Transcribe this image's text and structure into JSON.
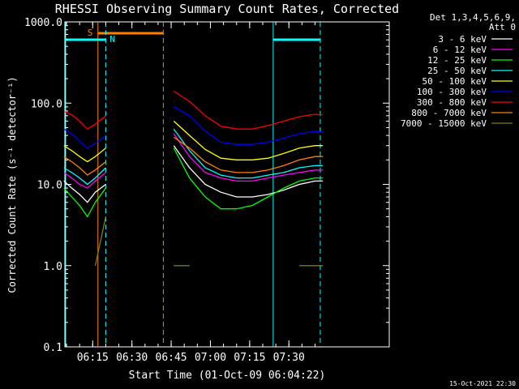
{
  "chart_data": {
    "type": "line",
    "title": "RHESSI Observing Summary Count Rates, Corrected",
    "xlabel": "Start Time (01-Oct-09 06:04:22)",
    "ylabel": "Corrected Count Rate (s⁻¹ detector⁻¹)",
    "yscale": "log",
    "ylim": [
      0.1,
      1000.0
    ],
    "xlim_minutes_after_start": [
      0,
      124
    ],
    "grid": false,
    "legend_placement": "top-right outside plot",
    "x_tick_labels": [
      "06:15",
      "06:30",
      "06:45",
      "07:00",
      "07:15",
      "07:30"
    ],
    "y_tick_labels": [
      "0.1",
      "1.0",
      "10.0",
      "100.0",
      "1000.0"
    ],
    "legend_header": [
      "Det 1,3,4,5,6,9,",
      "Att 0"
    ],
    "x_time_axis": [
      "06:04",
      "06:07",
      "06:10",
      "06:13",
      "06:16",
      "06:20",
      "06:46",
      "06:52",
      "06:58",
      "07:04",
      "07:10",
      "07:16",
      "07:22",
      "07:28",
      "07:34",
      "07:40",
      "07:43"
    ],
    "series": [
      {
        "name": "3 - 6 keV",
        "color": "#ffffff",
        "values": [
          11,
          9,
          7.5,
          6,
          8,
          10,
          30,
          16,
          10,
          8,
          7,
          7,
          7.5,
          8.5,
          10,
          11,
          11
        ]
      },
      {
        "name": "6 - 12 keV",
        "color": "#ff00ff",
        "values": [
          14,
          12,
          10,
          9,
          11,
          14,
          42,
          22,
          14,
          12,
          11,
          11,
          12,
          13,
          14,
          15,
          15
        ]
      },
      {
        "name": "12 - 25 keV",
        "color": "#00ff00",
        "values": [
          9,
          7,
          5.5,
          4,
          6,
          9,
          28,
          12,
          7,
          5,
          5,
          5.5,
          7,
          9,
          11,
          12,
          12
        ]
      },
      {
        "name": "25 - 50 keV",
        "color": "#00ffff",
        "values": [
          16,
          14,
          12,
          10,
          12,
          16,
          48,
          26,
          16,
          13,
          12,
          12,
          13,
          14,
          16,
          17,
          17
        ]
      },
      {
        "name": "50 - 100 keV",
        "color": "#ffff00",
        "values": [
          30,
          26,
          22,
          19,
          22,
          28,
          60,
          40,
          27,
          21,
          20,
          20,
          21,
          24,
          28,
          30,
          30
        ]
      },
      {
        "name": "100 - 300 keV",
        "color": "#0000ff",
        "values": [
          48,
          42,
          34,
          28,
          32,
          40,
          90,
          70,
          45,
          33,
          31,
          31,
          33,
          37,
          42,
          45,
          44
        ]
      },
      {
        "name": "300 - 800 keV",
        "color": "#ff0000",
        "values": [
          80,
          72,
          60,
          48,
          55,
          70,
          140,
          105,
          70,
          52,
          48,
          48,
          53,
          60,
          68,
          73,
          72
        ]
      },
      {
        "name": "800 - 7000 keV",
        "color": "#ff8000",
        "values": [
          22,
          19,
          16,
          13,
          15,
          19,
          38,
          28,
          19,
          15,
          14,
          14,
          15,
          17,
          20,
          22,
          22
        ]
      },
      {
        "name": "7000 - 15000 keV",
        "color": "#808000",
        "values": [
          null,
          null,
          null,
          null,
          1,
          4,
          1,
          1,
          null,
          null,
          null,
          null,
          null,
          null,
          1,
          1,
          1
        ]
      }
    ],
    "flags": [
      {
        "label": "S",
        "color": "#ff8000"
      },
      {
        "label": "N",
        "color": "#00ffff"
      }
    ],
    "footer": "15-Oct-2021 22:30"
  }
}
